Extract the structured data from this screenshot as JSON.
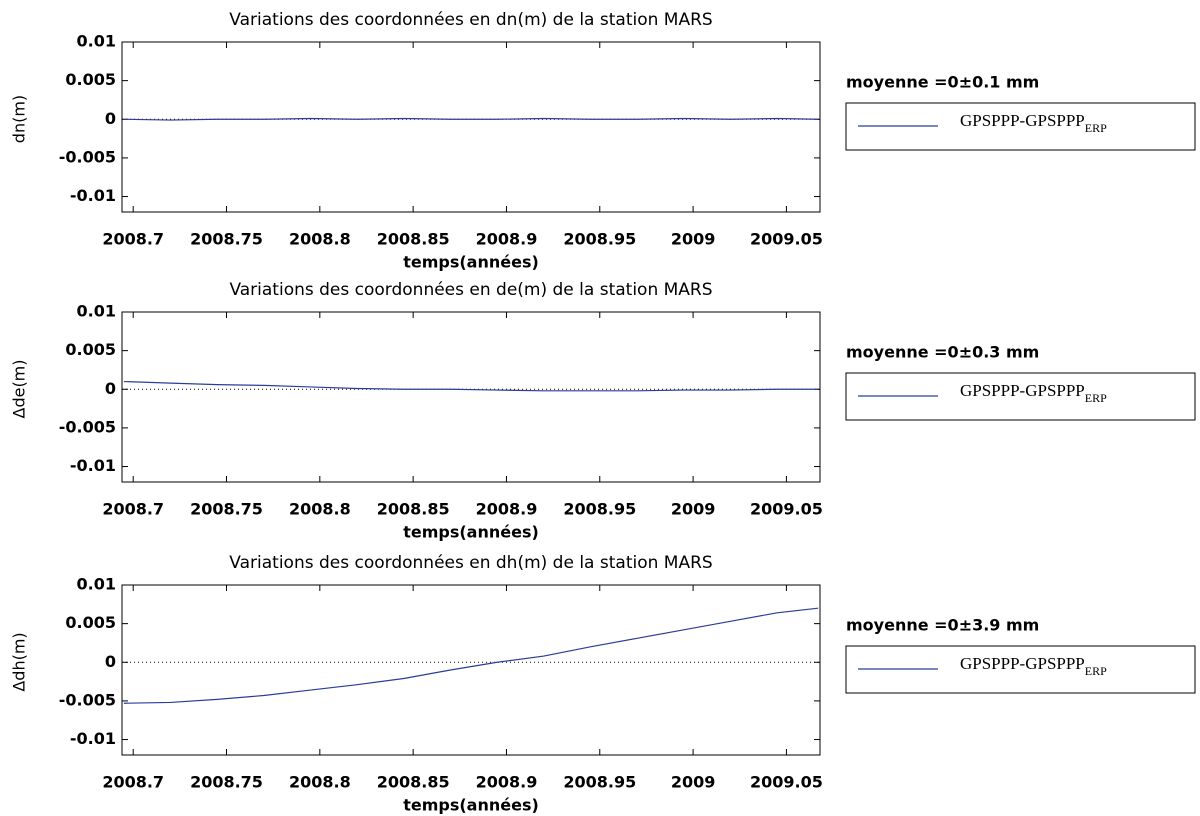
{
  "chart_data": [
    {
      "type": "line",
      "title": "Variations des coordonnées en dn(m) de la station MARS",
      "x_label": "temps(années)",
      "y_label": "dn(m)",
      "annotation": "moyenne =0±0.1 mm",
      "x": [
        2008.695,
        2008.72,
        2008.745,
        2008.77,
        2008.795,
        2008.82,
        2008.845,
        2008.87,
        2008.895,
        2008.92,
        2008.945,
        2008.97,
        2008.995,
        2009.02,
        2009.045,
        2009.067
      ],
      "series": [
        {
          "name": "GPSPPP-GPSPPP",
          "name_subscript": "ERP",
          "color": "#2b3d96",
          "values": [
            0,
            -0.0001,
            0,
            0,
            0.0001,
            0,
            0.0001,
            0,
            0,
            0.0001,
            0,
            0,
            0.0001,
            0,
            0.0001,
            0
          ]
        }
      ],
      "xlim": [
        2008.694,
        2009.068
      ],
      "xticks": [
        2008.7,
        2008.75,
        2008.8,
        2008.85,
        2008.9,
        2008.95,
        2009,
        2009.05
      ],
      "ylim": [
        -0.012,
        0.01
      ],
      "yticks": [
        0.01,
        0.005,
        0,
        -0.005,
        -0.01
      ],
      "reference_line": 0
    },
    {
      "type": "line",
      "title": "Variations des coordonnées en de(m) de la station MARS",
      "x_label": "temps(années)",
      "y_label": "Δde(m)",
      "annotation": "moyenne =0±0.3 mm",
      "x": [
        2008.695,
        2008.72,
        2008.745,
        2008.77,
        2008.795,
        2008.82,
        2008.845,
        2008.87,
        2008.895,
        2008.92,
        2008.945,
        2008.97,
        2008.995,
        2009.02,
        2009.045,
        2009.067
      ],
      "series": [
        {
          "name": "GPSPPP-GPSPPP",
          "name_subscript": "ERP",
          "color": "#2b3d96",
          "values": [
            0.001,
            0.0008,
            0.0006,
            0.0005,
            0.0003,
            0.0001,
            0,
            0,
            -0.0001,
            -0.0002,
            -0.0002,
            -0.0002,
            -0.0001,
            -0.0001,
            0,
            0
          ]
        }
      ],
      "xlim": [
        2008.694,
        2009.068
      ],
      "xticks": [
        2008.7,
        2008.75,
        2008.8,
        2008.85,
        2008.9,
        2008.95,
        2009,
        2009.05
      ],
      "ylim": [
        -0.012,
        0.01
      ],
      "yticks": [
        0.01,
        0.005,
        0,
        -0.005,
        -0.01
      ],
      "reference_line": 0
    },
    {
      "type": "line",
      "title": "Variations des coordonnées en dh(m) de la station MARS",
      "x_label": "temps(années)",
      "y_label": "Δdh(m)",
      "annotation": "moyenne =0±3.9 mm",
      "x": [
        2008.695,
        2008.72,
        2008.745,
        2008.77,
        2008.795,
        2008.82,
        2008.845,
        2008.87,
        2008.895,
        2008.92,
        2008.945,
        2008.97,
        2008.995,
        2009.02,
        2009.045,
        2009.067
      ],
      "series": [
        {
          "name": "GPSPPP-GPSPPP",
          "name_subscript": "ERP",
          "color": "#2b3d96",
          "values": [
            -0.0053,
            -0.0052,
            -0.0048,
            -0.0043,
            -0.0036,
            -0.0029,
            -0.0021,
            -0.001,
            0,
            0.0008,
            0.002,
            0.0031,
            0.0042,
            0.0053,
            0.0064,
            0.007
          ]
        }
      ],
      "xlim": [
        2008.694,
        2009.068
      ],
      "xticks": [
        2008.7,
        2008.75,
        2008.8,
        2008.85,
        2008.9,
        2008.95,
        2009,
        2009.05
      ],
      "ylim": [
        -0.012,
        0.01
      ],
      "yticks": [
        0.01,
        0.005,
        0,
        -0.005,
        -0.01
      ],
      "reference_line": 0
    }
  ]
}
